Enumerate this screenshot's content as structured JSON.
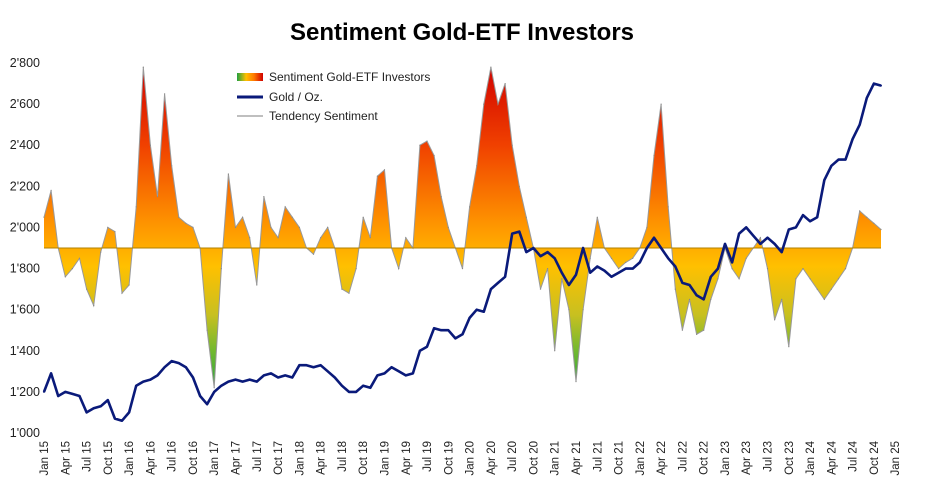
{
  "chart_data": {
    "type": "area",
    "title": "Sentiment Gold-ETF Investors",
    "ylim": [
      1000,
      2800
    ],
    "y_ticks": [
      "1'000",
      "1'200",
      "1'400",
      "1'600",
      "1'800",
      "2'000",
      "2'200",
      "2'400",
      "2'600",
      "2'800"
    ],
    "x_ticks": [
      "Jan 15",
      "Apr 15",
      "Jul 15",
      "Oct 15",
      "Jan 16",
      "Apr 16",
      "Jul 16",
      "Oct 16",
      "Jan 17",
      "Apr 17",
      "Jul 17",
      "Oct 17",
      "Jan 18",
      "Apr 18",
      "Jul 18",
      "Oct 18",
      "Jan 19",
      "Apr 19",
      "Jul 19",
      "Oct 19",
      "Jan 20",
      "Apr 20",
      "Jul 20",
      "Oct 20",
      "Jan 21",
      "Apr 21",
      "Jul 21",
      "Oct 21",
      "Jan 22",
      "Apr 22",
      "Jul 22",
      "Oct 22",
      "Jan 23",
      "Apr 23",
      "Jul 23",
      "Oct 23",
      "Jan 24",
      "Apr 24",
      "Jul 24",
      "Oct 24",
      "Jan 25"
    ],
    "baseline": 1900,
    "legend": [
      {
        "name": "Sentiment Gold-ETF Investors",
        "kind": "area-gradient"
      },
      {
        "name": "Gold / Oz.",
        "kind": "line",
        "color": "#0a1a7a"
      },
      {
        "name": "Tendency Sentiment",
        "kind": "line",
        "color": "#aaaaaa"
      }
    ],
    "legend_position": "top-center",
    "series": [
      {
        "name": "Sentiment Gold-ETF Investors",
        "x": [
          "2015-01",
          "2015-02",
          "2015-03",
          "2015-04",
          "2015-05",
          "2015-06",
          "2015-07",
          "2015-08",
          "2015-09",
          "2015-10",
          "2015-11",
          "2015-12",
          "2016-01",
          "2016-02",
          "2016-03",
          "2016-04",
          "2016-05",
          "2016-06",
          "2016-07",
          "2016-08",
          "2016-09",
          "2016-10",
          "2016-11",
          "2016-12",
          "2017-01",
          "2017-02",
          "2017-03",
          "2017-04",
          "2017-05",
          "2017-06",
          "2017-07",
          "2017-08",
          "2017-09",
          "2017-10",
          "2017-11",
          "2017-12",
          "2018-01",
          "2018-02",
          "2018-03",
          "2018-04",
          "2018-05",
          "2018-06",
          "2018-07",
          "2018-08",
          "2018-09",
          "2018-10",
          "2018-11",
          "2018-12",
          "2019-01",
          "2019-02",
          "2019-03",
          "2019-04",
          "2019-05",
          "2019-06",
          "2019-07",
          "2019-08",
          "2019-09",
          "2019-10",
          "2019-11",
          "2019-12",
          "2020-01",
          "2020-02",
          "2020-03",
          "2020-04",
          "2020-05",
          "2020-06",
          "2020-07",
          "2020-08",
          "2020-09",
          "2020-10",
          "2020-11",
          "2020-12",
          "2021-01",
          "2021-02",
          "2021-03",
          "2021-04",
          "2021-05",
          "2021-06",
          "2021-07",
          "2021-08",
          "2021-09",
          "2021-10",
          "2021-11",
          "2021-12",
          "2022-01",
          "2022-02",
          "2022-03",
          "2022-04",
          "2022-05",
          "2022-06",
          "2022-07",
          "2022-08",
          "2022-09",
          "2022-10",
          "2022-11",
          "2022-12",
          "2023-01",
          "2023-02",
          "2023-03",
          "2023-04",
          "2023-05",
          "2023-06",
          "2023-07",
          "2023-08",
          "2023-09",
          "2023-10",
          "2023-11",
          "2023-12",
          "2024-01",
          "2024-02",
          "2024-03",
          "2024-04",
          "2024-05",
          "2024-06",
          "2024-07",
          "2024-08",
          "2024-09",
          "2024-10",
          "2024-11"
        ],
        "values": [
          2050,
          2180,
          1900,
          1760,
          1800,
          1850,
          1700,
          1620,
          1880,
          2000,
          1980,
          1680,
          1720,
          2100,
          2780,
          2400,
          2150,
          2650,
          2300,
          2050,
          2020,
          2000,
          1900,
          1500,
          1220,
          1800,
          2260,
          2000,
          2050,
          1950,
          1720,
          2150,
          2000,
          1950,
          2100,
          2050,
          2000,
          1900,
          1870,
          1950,
          2000,
          1900,
          1700,
          1680,
          1800,
          2050,
          1950,
          2250,
          2280,
          1900,
          1800,
          1950,
          1900,
          2400,
          2420,
          2350,
          2150,
          2000,
          1900,
          1800,
          2100,
          2300,
          2600,
          2780,
          2600,
          2700,
          2400,
          2200,
          2050,
          1900,
          1700,
          1800,
          1400,
          1750,
          1600,
          1250,
          1600,
          1850,
          2050,
          1900,
          1850,
          1800,
          1830,
          1850,
          1900,
          2000,
          2350,
          2600,
          2100,
          1700,
          1500,
          1650,
          1480,
          1500,
          1650,
          1750,
          1900,
          1800,
          1750,
          1850,
          1900,
          1950,
          1800,
          1550,
          1650,
          1420,
          1750,
          1800,
          1750,
          1700,
          1650,
          1700,
          1750,
          1800,
          1900,
          2080,
          2050,
          2020,
          1990
        ]
      },
      {
        "name": "Gold / Oz.",
        "x": [
          "2015-01",
          "2015-02",
          "2015-03",
          "2015-04",
          "2015-05",
          "2015-06",
          "2015-07",
          "2015-08",
          "2015-09",
          "2015-10",
          "2015-11",
          "2015-12",
          "2016-01",
          "2016-02",
          "2016-03",
          "2016-04",
          "2016-05",
          "2016-06",
          "2016-07",
          "2016-08",
          "2016-09",
          "2016-10",
          "2016-11",
          "2016-12",
          "2017-01",
          "2017-02",
          "2017-03",
          "2017-04",
          "2017-05",
          "2017-06",
          "2017-07",
          "2017-08",
          "2017-09",
          "2017-10",
          "2017-11",
          "2017-12",
          "2018-01",
          "2018-02",
          "2018-03",
          "2018-04",
          "2018-05",
          "2018-06",
          "2018-07",
          "2018-08",
          "2018-09",
          "2018-10",
          "2018-11",
          "2018-12",
          "2019-01",
          "2019-02",
          "2019-03",
          "2019-04",
          "2019-05",
          "2019-06",
          "2019-07",
          "2019-08",
          "2019-09",
          "2019-10",
          "2019-11",
          "2019-12",
          "2020-01",
          "2020-02",
          "2020-03",
          "2020-04",
          "2020-05",
          "2020-06",
          "2020-07",
          "2020-08",
          "2020-09",
          "2020-10",
          "2020-11",
          "2020-12",
          "2021-01",
          "2021-02",
          "2021-03",
          "2021-04",
          "2021-05",
          "2021-06",
          "2021-07",
          "2021-08",
          "2021-09",
          "2021-10",
          "2021-11",
          "2021-12",
          "2022-01",
          "2022-02",
          "2022-03",
          "2022-04",
          "2022-05",
          "2022-06",
          "2022-07",
          "2022-08",
          "2022-09",
          "2022-10",
          "2022-11",
          "2022-12",
          "2023-01",
          "2023-02",
          "2023-03",
          "2023-04",
          "2023-05",
          "2023-06",
          "2023-07",
          "2023-08",
          "2023-09",
          "2023-10",
          "2023-11",
          "2023-12",
          "2024-01",
          "2024-02",
          "2024-03",
          "2024-04",
          "2024-05",
          "2024-06",
          "2024-07",
          "2024-08",
          "2024-09",
          "2024-10",
          "2024-11"
        ],
        "values": [
          1200,
          1290,
          1180,
          1200,
          1190,
          1180,
          1100,
          1120,
          1130,
          1160,
          1070,
          1060,
          1100,
          1230,
          1250,
          1260,
          1280,
          1320,
          1350,
          1340,
          1320,
          1270,
          1180,
          1140,
          1200,
          1230,
          1250,
          1260,
          1250,
          1260,
          1250,
          1280,
          1290,
          1270,
          1280,
          1270,
          1330,
          1330,
          1320,
          1330,
          1300,
          1270,
          1230,
          1200,
          1200,
          1230,
          1220,
          1280,
          1290,
          1320,
          1300,
          1280,
          1290,
          1400,
          1420,
          1510,
          1500,
          1500,
          1460,
          1480,
          1560,
          1600,
          1590,
          1700,
          1730,
          1760,
          1970,
          1980,
          1880,
          1900,
          1860,
          1880,
          1850,
          1780,
          1720,
          1770,
          1900,
          1780,
          1810,
          1790,
          1760,
          1780,
          1800,
          1800,
          1830,
          1900,
          1950,
          1900,
          1850,
          1810,
          1730,
          1720,
          1670,
          1650,
          1760,
          1800,
          1920,
          1830,
          1970,
          2000,
          1960,
          1920,
          1950,
          1920,
          1880,
          1990,
          2000,
          2060,
          2030,
          2050,
          2230,
          2300,
          2330,
          2330,
          2430,
          2500,
          2630,
          2700,
          2690
        ]
      }
    ]
  }
}
